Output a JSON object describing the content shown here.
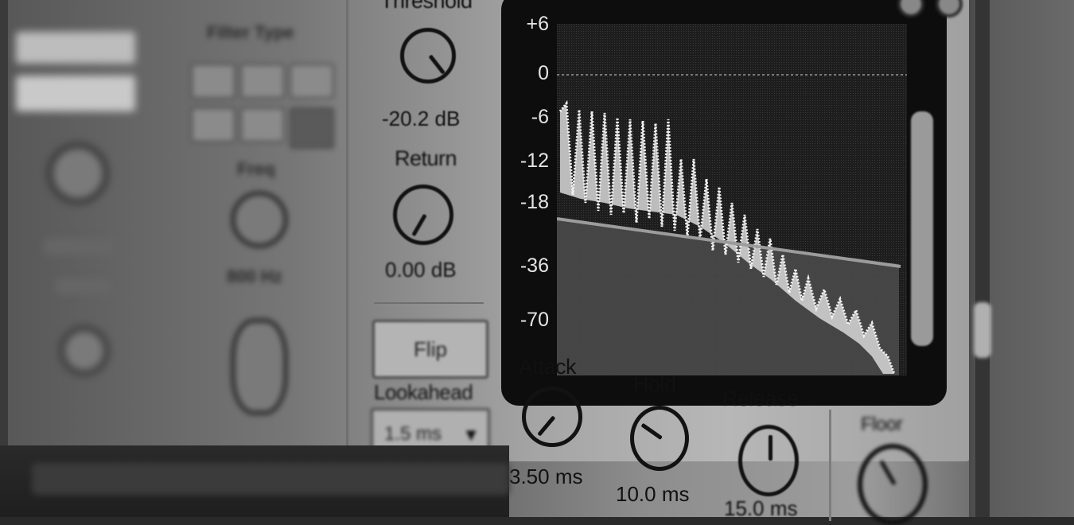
{
  "left_section": {
    "filter_type_label": "Filter Type",
    "freq_label": "Freq",
    "freq_value": "800 Hz"
  },
  "controls": {
    "threshold": {
      "label": "Threshold",
      "value": "-20.2 dB"
    },
    "return": {
      "label": "Return",
      "value": "0.00 dB"
    },
    "flip": {
      "label": "Flip"
    },
    "lookahead": {
      "label": "Lookahead",
      "selected": "1.5 ms"
    },
    "attack": {
      "label": "Attack",
      "value": "3.50 ms"
    },
    "hold": {
      "label": "Hold",
      "value": "10.0 ms"
    },
    "release": {
      "label": "Release",
      "value": "15.0 ms"
    },
    "floor": {
      "label": "Floor"
    }
  },
  "display": {
    "y_axis_labels": [
      "+6",
      "0",
      "-6",
      "-12",
      "-18",
      "-36",
      "-70"
    ]
  },
  "icons": {
    "dropdown": "chevron-down-icon",
    "top_buttons": [
      "settings-icon",
      "power-icon"
    ]
  }
}
